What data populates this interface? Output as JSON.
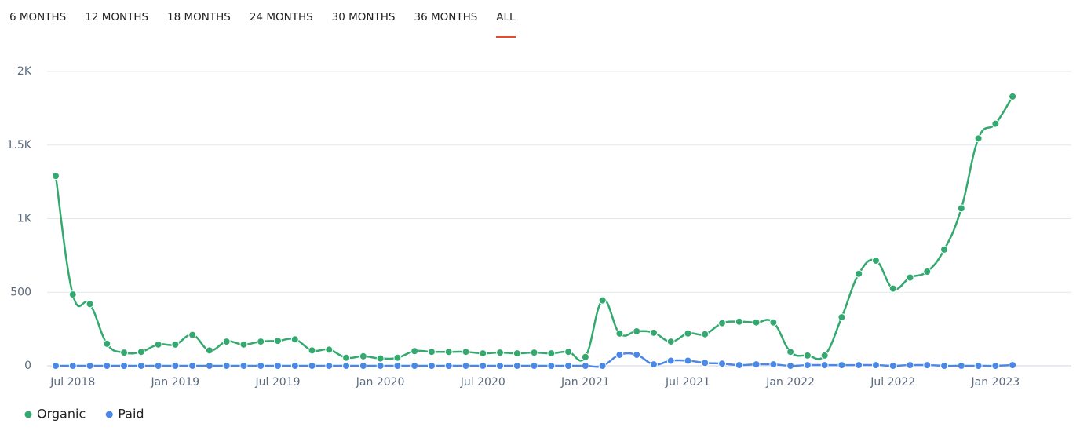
{
  "tabs": [
    "6 MONTHS",
    "12 MONTHS",
    "18 MONTHS",
    "24 MONTHS",
    "30 MONTHS",
    "36 MONTHS",
    "ALL"
  ],
  "selected_tab": 6,
  "chart_data": {
    "type": "line",
    "x": [
      "Jun 2018",
      "Jul 2018",
      "Aug 2018",
      "Sep 2018",
      "Oct 2018",
      "Nov 2018",
      "Dec 2018",
      "Jan 2019",
      "Feb 2019",
      "Mar 2019",
      "Apr 2019",
      "May 2019",
      "Jun 2019",
      "Jul 2019",
      "Aug 2019",
      "Sep 2019",
      "Oct 2019",
      "Nov 2019",
      "Dec 2019",
      "Jan 2020",
      "Feb 2020",
      "Mar 2020",
      "Apr 2020",
      "May 2020",
      "Jun 2020",
      "Jul 2020",
      "Aug 2020",
      "Sep 2020",
      "Oct 2020",
      "Nov 2020",
      "Dec 2020",
      "Jan 2021",
      "Feb 2021",
      "Mar 2021",
      "Apr 2021",
      "May 2021",
      "Jun 2021",
      "Jul 2021",
      "Aug 2021",
      "Sep 2021",
      "Oct 2021",
      "Nov 2021",
      "Dec 2021",
      "Jan 2022",
      "Feb 2022",
      "Mar 2022",
      "Apr 2022",
      "May 2022",
      "Jun 2022",
      "Jul 2022",
      "Aug 2022",
      "Sep 2022",
      "Oct 2022",
      "Nov 2022",
      "Dec 2022",
      "Jan 2023",
      "Feb 2023"
    ],
    "xticks": [
      "Jul 2018",
      "Jan 2019",
      "Jul 2019",
      "Jan 2020",
      "Jul 2020",
      "Jan 2021",
      "Jul 2021",
      "Jan 2022",
      "Jul 2022",
      "Jan 2023"
    ],
    "series": [
      {
        "name": "Organic",
        "color": "#33a96f",
        "values": [
          1290,
          485,
          420,
          150,
          90,
          95,
          145,
          145,
          210,
          105,
          165,
          145,
          165,
          170,
          180,
          105,
          110,
          55,
          65,
          50,
          55,
          100,
          95,
          95,
          95,
          85,
          90,
          85,
          90,
          85,
          95,
          60,
          445,
          220,
          235,
          225,
          165,
          220,
          215,
          290,
          300,
          295,
          295,
          95,
          70,
          70,
          330,
          625,
          715,
          525,
          600,
          640,
          790,
          1070,
          1545,
          1645,
          1830
        ]
      },
      {
        "name": "Paid",
        "color": "#4a87e6",
        "values": [
          0,
          0,
          0,
          0,
          0,
          0,
          0,
          0,
          0,
          0,
          0,
          0,
          0,
          0,
          0,
          0,
          0,
          0,
          0,
          0,
          0,
          0,
          0,
          0,
          0,
          0,
          0,
          0,
          0,
          0,
          0,
          0,
          0,
          75,
          75,
          10,
          35,
          35,
          20,
          15,
          5,
          10,
          10,
          0,
          5,
          5,
          5,
          5,
          5,
          0,
          5,
          5,
          0,
          0,
          0,
          0,
          5
        ]
      }
    ],
    "ylim": [
      0,
      2000
    ],
    "yticks": [
      0,
      500,
      {
        "value": 1000,
        "label": "1K"
      },
      {
        "value": 1500,
        "label": "1.5K"
      },
      {
        "value": 2000,
        "label": "2K"
      }
    ],
    "grid": true,
    "legend": "bottom-left"
  }
}
